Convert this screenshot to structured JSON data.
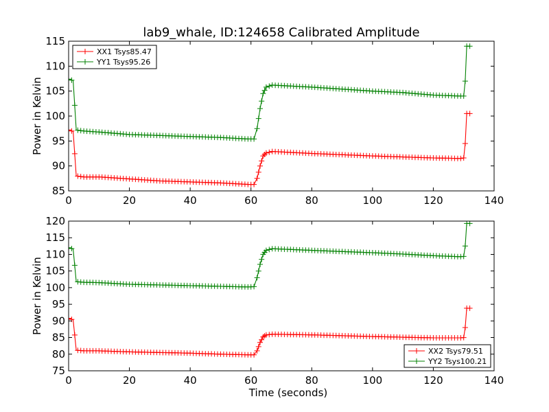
{
  "chart_data": {
    "title": "lab9_whale, ID:124658 Calibrated Amplitude",
    "panels": [
      {
        "type": "line",
        "ylabel": "Power in Kelvin",
        "xlabel": "",
        "xlim": [
          0,
          140
        ],
        "ylim": [
          85,
          115
        ],
        "xticks": [
          0,
          20,
          40,
          60,
          80,
          100,
          120,
          140
        ],
        "yticks": [
          85,
          90,
          95,
          100,
          105,
          110,
          115
        ],
        "legend_position": "upper-left",
        "series": [
          {
            "name": "XX1 Tsys85.47",
            "color": "#ff0000",
            "marker": "plus",
            "points": [
              [
                0,
                97.2
              ],
              [
                1.5,
                96.9
              ],
              [
                2.5,
                88.0
              ],
              [
                5,
                87.8
              ],
              [
                10,
                87.8
              ],
              [
                20,
                87.4
              ],
              [
                30,
                87.0
              ],
              [
                40,
                86.8
              ],
              [
                50,
                86.6
              ],
              [
                59,
                86.3
              ],
              [
                61,
                86.3
              ],
              [
                62,
                87.5
              ],
              [
                63,
                90.0
              ],
              [
                64,
                92.0
              ],
              [
                65,
                92.6
              ],
              [
                67,
                92.9
              ],
              [
                80,
                92.5
              ],
              [
                100,
                92.0
              ],
              [
                110,
                91.8
              ],
              [
                120,
                91.6
              ],
              [
                129,
                91.5
              ],
              [
                130,
                91.6
              ],
              [
                130.5,
                94.5
              ],
              [
                131,
                100.5
              ],
              [
                132,
                100.5
              ]
            ]
          },
          {
            "name": "YY1 Tsys95.26",
            "color": "#008000",
            "marker": "plus",
            "points": [
              [
                0,
                107.4
              ],
              [
                1.5,
                107.1
              ],
              [
                2.5,
                97.2
              ],
              [
                5,
                97.0
              ],
              [
                10,
                96.8
              ],
              [
                20,
                96.3
              ],
              [
                30,
                96.1
              ],
              [
                40,
                95.9
              ],
              [
                50,
                95.7
              ],
              [
                59,
                95.4
              ],
              [
                61,
                95.4
              ],
              [
                62,
                97.5
              ],
              [
                63,
                101.5
              ],
              [
                64,
                104.5
              ],
              [
                65,
                105.8
              ],
              [
                67,
                106.2
              ],
              [
                80,
                105.8
              ],
              [
                100,
                105.0
              ],
              [
                110,
                104.7
              ],
              [
                120,
                104.2
              ],
              [
                129,
                104.0
              ],
              [
                130,
                104.0
              ],
              [
                130.5,
                107.0
              ],
              [
                131,
                114.0
              ],
              [
                132,
                114.0
              ]
            ]
          }
        ]
      },
      {
        "type": "line",
        "ylabel": "Power in Kelvin",
        "xlabel": "Time (seconds)",
        "xlim": [
          0,
          140
        ],
        "ylim": [
          75,
          120
        ],
        "xticks": [
          0,
          20,
          40,
          60,
          80,
          100,
          120,
          140
        ],
        "yticks": [
          75,
          80,
          85,
          90,
          95,
          100,
          105,
          110,
          115,
          120
        ],
        "legend_position": "lower-right",
        "series": [
          {
            "name": "XX2 Tsys79.51",
            "color": "#ff0000",
            "marker": "plus",
            "points": [
              [
                0,
                90.8
              ],
              [
                1.5,
                90.3
              ],
              [
                2.5,
                81.2
              ],
              [
                5,
                81.0
              ],
              [
                10,
                81.0
              ],
              [
                20,
                80.7
              ],
              [
                30,
                80.5
              ],
              [
                40,
                80.3
              ],
              [
                50,
                80.0
              ],
              [
                59,
                79.8
              ],
              [
                61,
                79.8
              ],
              [
                62,
                81.0
              ],
              [
                63,
                83.5
              ],
              [
                64,
                85.2
              ],
              [
                65,
                85.8
              ],
              [
                67,
                86.0
              ],
              [
                80,
                85.8
              ],
              [
                100,
                85.3
              ],
              [
                110,
                85.1
              ],
              [
                120,
                84.9
              ],
              [
                129,
                84.9
              ],
              [
                130,
                85.0
              ],
              [
                130.5,
                88.0
              ],
              [
                131,
                93.8
              ],
              [
                132,
                93.8
              ]
            ]
          },
          {
            "name": "YY2 Tsys100.21",
            "color": "#008000",
            "marker": "plus",
            "points": [
              [
                0,
                112.0
              ],
              [
                1.5,
                111.6
              ],
              [
                2.5,
                101.8
              ],
              [
                5,
                101.6
              ],
              [
                10,
                101.5
              ],
              [
                20,
                101.0
              ],
              [
                30,
                100.8
              ],
              [
                40,
                100.6
              ],
              [
                50,
                100.4
              ],
              [
                59,
                100.2
              ],
              [
                61,
                100.3
              ],
              [
                62,
                103.0
              ],
              [
                63,
                107.0
              ],
              [
                64,
                110.0
              ],
              [
                65,
                111.2
              ],
              [
                67,
                111.7
              ],
              [
                80,
                111.2
              ],
              [
                100,
                110.5
              ],
              [
                110,
                110.1
              ],
              [
                120,
                109.6
              ],
              [
                129,
                109.3
              ],
              [
                130,
                109.4
              ],
              [
                130.5,
                112.5
              ],
              [
                131,
                119.3
              ],
              [
                132,
                119.3
              ]
            ]
          }
        ]
      }
    ]
  }
}
